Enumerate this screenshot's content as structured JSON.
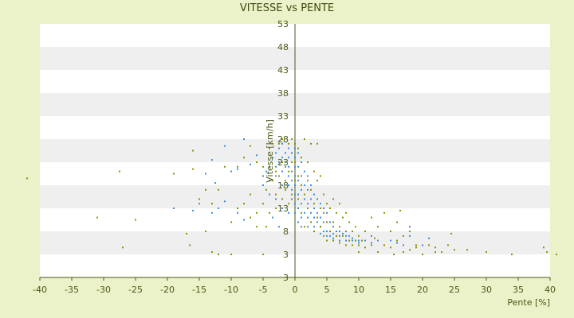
{
  "chart_data": {
    "type": "scatter",
    "title": "VITESSE vs PENTE",
    "xlabel": "Pente [%]",
    "ylabel": "Vitesse [km/h]",
    "xlim": [
      -40,
      40
    ],
    "ylim": [
      3,
      53
    ],
    "x_ticks": [
      "-40",
      "-35",
      "-30",
      "-25",
      "-20",
      "-15",
      "-10",
      "-5",
      "0",
      "5",
      "10",
      "15",
      "20",
      "25",
      "30",
      "35",
      "40"
    ],
    "y_ticks": [
      "3",
      "3",
      "8",
      "13",
      "18",
      "23",
      "28",
      "33",
      "38",
      "43",
      "48",
      "53"
    ],
    "grid": "horizontal bands",
    "legend": "none",
    "colors": {
      "background": "#ebf1c9",
      "band_light": "#ffffff",
      "band_dark": "#efefef",
      "series_a": "#3a8fe0",
      "series_b": "#8c9200",
      "axis": "#4a5a14"
    },
    "series": [
      {
        "color": "#3a8fe0",
        "points": [
          [
            -14,
            20.5
          ],
          [
            -13,
            23.5
          ],
          [
            -12.5,
            18.5
          ],
          [
            -11,
            26.5
          ],
          [
            -10,
            21
          ],
          [
            -9,
            21.5
          ],
          [
            -8,
            28
          ],
          [
            -7,
            22.5
          ],
          [
            -6,
            24.5
          ],
          [
            -15,
            14
          ],
          [
            -13,
            12
          ],
          [
            -11,
            14.5
          ],
          [
            -9,
            12
          ],
          [
            -19,
            13
          ],
          [
            -16,
            12.5
          ],
          [
            -12,
            13
          ],
          [
            -8,
            10.5
          ],
          [
            -5,
            18
          ],
          [
            -5,
            20
          ],
          [
            -4.5,
            21
          ],
          [
            -4,
            22
          ],
          [
            -4,
            19
          ],
          [
            -3.5,
            24
          ],
          [
            -3,
            25
          ],
          [
            -3,
            22
          ],
          [
            -3,
            20
          ],
          [
            -2.5,
            23
          ],
          [
            -2.5,
            26
          ],
          [
            -2,
            27
          ],
          [
            -2,
            24
          ],
          [
            -2,
            21
          ],
          [
            -2,
            18
          ],
          [
            -1.5,
            25
          ],
          [
            -1.5,
            23
          ],
          [
            -1.5,
            22
          ],
          [
            -1,
            26
          ],
          [
            -1,
            24
          ],
          [
            -1,
            22
          ],
          [
            -1,
            20
          ],
          [
            -1,
            18
          ],
          [
            -0.5,
            25
          ],
          [
            -0.5,
            23
          ],
          [
            -0.5,
            21
          ],
          [
            -0.5,
            19
          ],
          [
            -0.5,
            17
          ],
          [
            0,
            26
          ],
          [
            0,
            24
          ],
          [
            0,
            22
          ],
          [
            0,
            20
          ],
          [
            0,
            18
          ],
          [
            0,
            16
          ],
          [
            0,
            14
          ],
          [
            0.5,
            25
          ],
          [
            0.5,
            22
          ],
          [
            0.5,
            19
          ],
          [
            0.5,
            16
          ],
          [
            0.5,
            13
          ],
          [
            1,
            23
          ],
          [
            1,
            20
          ],
          [
            1,
            17
          ],
          [
            1,
            14
          ],
          [
            1,
            11
          ],
          [
            1.5,
            21
          ],
          [
            1.5,
            18
          ],
          [
            1.5,
            15
          ],
          [
            1.5,
            12
          ],
          [
            2,
            20
          ],
          [
            2,
            17
          ],
          [
            2,
            14
          ],
          [
            2,
            11
          ],
          [
            2,
            9
          ],
          [
            2.5,
            18
          ],
          [
            2.5,
            15
          ],
          [
            2.5,
            12
          ],
          [
            2.5,
            10
          ],
          [
            3,
            16
          ],
          [
            3,
            13
          ],
          [
            3,
            11
          ],
          [
            3,
            9
          ],
          [
            3.5,
            15
          ],
          [
            3.5,
            12
          ],
          [
            3.5,
            10
          ],
          [
            4,
            14
          ],
          [
            4,
            11
          ],
          [
            4,
            9
          ],
          [
            4,
            7.5
          ],
          [
            4.5,
            13
          ],
          [
            4.5,
            10
          ],
          [
            4.5,
            8
          ],
          [
            5,
            12
          ],
          [
            5,
            10
          ],
          [
            5,
            8
          ],
          [
            5,
            7
          ],
          [
            5.5,
            10
          ],
          [
            5.5,
            8
          ],
          [
            5.5,
            7
          ],
          [
            6,
            9
          ],
          [
            6,
            7.5
          ],
          [
            6,
            6.5
          ],
          [
            6.5,
            8
          ],
          [
            6.5,
            7
          ],
          [
            7,
            8
          ],
          [
            7,
            7
          ],
          [
            7,
            6
          ],
          [
            7.5,
            7.5
          ],
          [
            8,
            7
          ],
          [
            8,
            6
          ],
          [
            8.5,
            7
          ],
          [
            9,
            6.5
          ],
          [
            9,
            6
          ],
          [
            10,
            6
          ],
          [
            10,
            5.5
          ],
          [
            11,
            6
          ],
          [
            12,
            5.5
          ],
          [
            12,
            7
          ],
          [
            13,
            6
          ],
          [
            14,
            5
          ],
          [
            15,
            8
          ],
          [
            15,
            6
          ],
          [
            16,
            5.5
          ],
          [
            17,
            5
          ],
          [
            18,
            9
          ],
          [
            18,
            7
          ],
          [
            20,
            5
          ],
          [
            21,
            6.5
          ],
          [
            -3,
            15
          ],
          [
            -2,
            13
          ],
          [
            -1,
            12
          ],
          [
            -0.5,
            15
          ],
          [
            0,
            12
          ],
          [
            0.5,
            10
          ],
          [
            1,
            9
          ],
          [
            -4,
            16
          ],
          [
            -3.5,
            11
          ],
          [
            -2.5,
            9
          ]
        ]
      },
      {
        "color": "#8c9200",
        "points": [
          [
            -42,
            19.5
          ],
          [
            -31,
            11
          ],
          [
            -27,
            4.5
          ],
          [
            -27.5,
            21
          ],
          [
            -25,
            10.5
          ],
          [
            -19,
            20.5
          ],
          [
            -17,
            7.5
          ],
          [
            -16.5,
            5
          ],
          [
            -16,
            21.5
          ],
          [
            -16,
            25.5
          ],
          [
            -15,
            15
          ],
          [
            -14,
            8
          ],
          [
            -14,
            17
          ],
          [
            -13,
            14
          ],
          [
            -13,
            3.5
          ],
          [
            -12,
            3
          ],
          [
            -12,
            17
          ],
          [
            -11,
            22
          ],
          [
            -10,
            3
          ],
          [
            -10,
            10
          ],
          [
            -9,
            13
          ],
          [
            -9,
            22
          ],
          [
            -8,
            14
          ],
          [
            -8,
            24
          ],
          [
            -7,
            11
          ],
          [
            -7,
            16
          ],
          [
            -7,
            26.5
          ],
          [
            -6,
            12
          ],
          [
            -6,
            23
          ],
          [
            -6,
            9
          ],
          [
            -5,
            3
          ],
          [
            -5,
            14
          ],
          [
            -5,
            22
          ],
          [
            -4.5,
            9
          ],
          [
            -4.5,
            17
          ],
          [
            -4,
            12
          ],
          [
            -4,
            26
          ],
          [
            -3.5,
            19
          ],
          [
            -3.5,
            27
          ],
          [
            -3,
            13
          ],
          [
            -3,
            21
          ],
          [
            -3,
            16
          ],
          [
            -2.5,
            20
          ],
          [
            -2.5,
            27
          ],
          [
            -2,
            15
          ],
          [
            -2,
            23
          ],
          [
            -2,
            28
          ],
          [
            -1.5,
            17
          ],
          [
            -1.5,
            19
          ],
          [
            -1,
            14
          ],
          [
            -1,
            21
          ],
          [
            -1,
            27
          ],
          [
            -0.5,
            16
          ],
          [
            -0.5,
            23
          ],
          [
            -0.5,
            28
          ],
          [
            0,
            19
          ],
          [
            0,
            23
          ],
          [
            0,
            27
          ],
          [
            0.5,
            15
          ],
          [
            0.5,
            20
          ],
          [
            0.5,
            26
          ],
          [
            1,
            12
          ],
          [
            1,
            18
          ],
          [
            1,
            24
          ],
          [
            1.5,
            9
          ],
          [
            1.5,
            16
          ],
          [
            1.5,
            28
          ],
          [
            2,
            13
          ],
          [
            2,
            19
          ],
          [
            2,
            23
          ],
          [
            2.5,
            10
          ],
          [
            2.5,
            17
          ],
          [
            2.5,
            27
          ],
          [
            3,
            8
          ],
          [
            3,
            14
          ],
          [
            3,
            21
          ],
          [
            3.5,
            11
          ],
          [
            3.5,
            19
          ],
          [
            3.5,
            27
          ],
          [
            4,
            9
          ],
          [
            4,
            13
          ],
          [
            4,
            20
          ],
          [
            4.5,
            7
          ],
          [
            4.5,
            12
          ],
          [
            4.5,
            16
          ],
          [
            5,
            6
          ],
          [
            5,
            10
          ],
          [
            5,
            14
          ],
          [
            5.5,
            8
          ],
          [
            5.5,
            13
          ],
          [
            6,
            6
          ],
          [
            6,
            10
          ],
          [
            6,
            15
          ],
          [
            6.5,
            7
          ],
          [
            6.5,
            12
          ],
          [
            7,
            5.5
          ],
          [
            7,
            9
          ],
          [
            7,
            14
          ],
          [
            7.5,
            7
          ],
          [
            7.5,
            11
          ],
          [
            8,
            5
          ],
          [
            8,
            8
          ],
          [
            8,
            12
          ],
          [
            8.5,
            6
          ],
          [
            8.5,
            10
          ],
          [
            9,
            5
          ],
          [
            9,
            8
          ],
          [
            9.5,
            6
          ],
          [
            9.5,
            9
          ],
          [
            10,
            5
          ],
          [
            10,
            7
          ],
          [
            10,
            3.5
          ],
          [
            10.5,
            6
          ],
          [
            11,
            4.5
          ],
          [
            11,
            8
          ],
          [
            12,
            11
          ],
          [
            12,
            5
          ],
          [
            12.5,
            6.5
          ],
          [
            13,
            3.5
          ],
          [
            13,
            9
          ],
          [
            14,
            5
          ],
          [
            14,
            12
          ],
          [
            15,
            4.5
          ],
          [
            15,
            8
          ],
          [
            15.5,
            3
          ],
          [
            16,
            6
          ],
          [
            16,
            10
          ],
          [
            16.5,
            12.5
          ],
          [
            17,
            3.5
          ],
          [
            17,
            7
          ],
          [
            18,
            4
          ],
          [
            18,
            8
          ],
          [
            19,
            5
          ],
          [
            19,
            4.5
          ],
          [
            20,
            3
          ],
          [
            21,
            5
          ],
          [
            22,
            3.5
          ],
          [
            22,
            4.5
          ],
          [
            23,
            3.5
          ],
          [
            24,
            5
          ],
          [
            24.5,
            7.5
          ],
          [
            25,
            4
          ],
          [
            27,
            4
          ],
          [
            30,
            3.5
          ],
          [
            34,
            3
          ],
          [
            39,
            4.5
          ],
          [
            39.5,
            3.5
          ],
          [
            41,
            3
          ]
        ]
      }
    ]
  }
}
